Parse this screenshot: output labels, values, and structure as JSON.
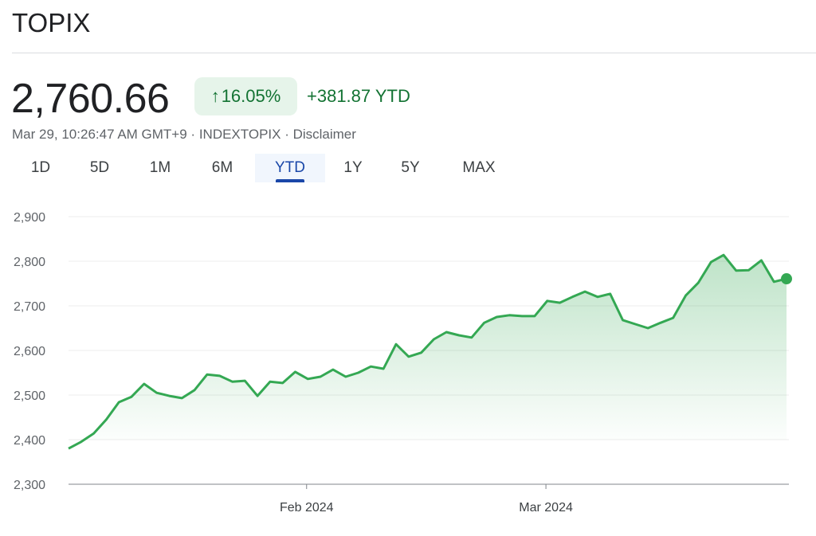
{
  "header": {
    "title": "TOPIX"
  },
  "quote": {
    "price": "2,760.66",
    "change_percent": "16.05%",
    "change_arrow": "↑",
    "change_abs": "+381.87 YTD",
    "timestamp": "Mar 29, 10:26:47 AM GMT+9",
    "separator": " · ",
    "ticker": "INDEXTOPIX",
    "disclaimer": "Disclaimer"
  },
  "tabs": [
    {
      "label": "1D"
    },
    {
      "label": "5D"
    },
    {
      "label": "1M"
    },
    {
      "label": "6M"
    },
    {
      "label": "YTD",
      "active": true
    },
    {
      "label": "1Y"
    },
    {
      "label": "5Y"
    },
    {
      "label": "MAX"
    }
  ],
  "colors": {
    "line": "#34a853",
    "positive_text": "#137333",
    "badge_bg": "#e6f4ea",
    "active_tab": "#1a47a8"
  },
  "chart_data": {
    "type": "area",
    "title": "",
    "xlabel": "",
    "ylabel": "",
    "ylim": [
      2300,
      2900
    ],
    "yticks": [
      2300,
      2400,
      2500,
      2600,
      2700,
      2800,
      2900
    ],
    "ytick_labels": [
      "2,300",
      "2,400",
      "2,500",
      "2,600",
      "2,700",
      "2,800",
      "2,900"
    ],
    "xticks": [
      {
        "index": 18.9,
        "label": "Feb 2024"
      },
      {
        "index": 37.9,
        "label": "Mar 2024"
      }
    ],
    "grid": true,
    "values": [
      2380,
      2395,
      2414,
      2445,
      2484,
      2496,
      2525,
      2505,
      2498,
      2493,
      2511,
      2546,
      2543,
      2530,
      2532,
      2498,
      2530,
      2527,
      2552,
      2536,
      2541,
      2557,
      2541,
      2550,
      2564,
      2559,
      2614,
      2586,
      2595,
      2625,
      2641,
      2634,
      2629,
      2662,
      2675,
      2679,
      2677,
      2677,
      2711,
      2707,
      2720,
      2732,
      2720,
      2727,
      2668,
      2659,
      2650,
      2662,
      2673,
      2723,
      2752,
      2798,
      2814,
      2779,
      2780,
      2802,
      2754,
      2760.66
    ]
  }
}
